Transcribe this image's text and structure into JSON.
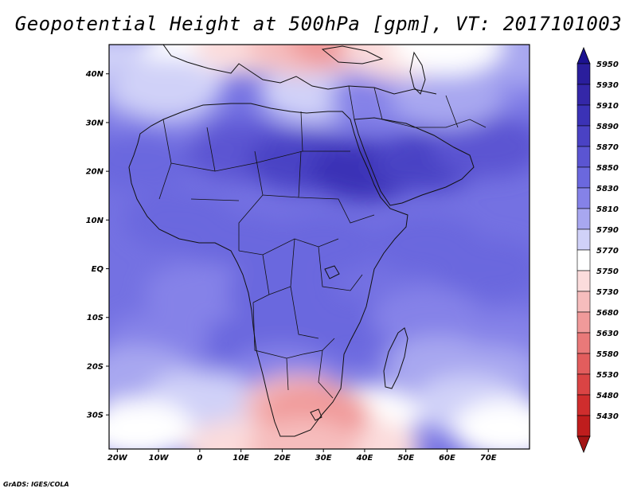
{
  "title": "Geopotential Height at 500hPa [gpm], VT: 2017101003",
  "credit": "GrADS: IGES/COLA",
  "map": {
    "lon_min": -22,
    "lon_max": 80,
    "lat_min": -37,
    "lat_max": 46,
    "lat_ticks": [
      {
        "value": 40,
        "label": "40N"
      },
      {
        "value": 30,
        "label": "30N"
      },
      {
        "value": 20,
        "label": "20N"
      },
      {
        "value": 10,
        "label": "10N"
      },
      {
        "value": 0,
        "label": "EQ"
      },
      {
        "value": -10,
        "label": "10S"
      },
      {
        "value": -20,
        "label": "20S"
      },
      {
        "value": -30,
        "label": "30S"
      }
    ],
    "lon_ticks": [
      {
        "value": -20,
        "label": "20W"
      },
      {
        "value": -10,
        "label": "10W"
      },
      {
        "value": 0,
        "label": "0"
      },
      {
        "value": 10,
        "label": "10E"
      },
      {
        "value": 20,
        "label": "20E"
      },
      {
        "value": 30,
        "label": "30E"
      },
      {
        "value": 40,
        "label": "40E"
      },
      {
        "value": 50,
        "label": "50E"
      },
      {
        "value": 60,
        "label": "60E"
      },
      {
        "value": 70,
        "label": "70E"
      }
    ]
  },
  "colorbar": {
    "levels": [
      {
        "label": "5950",
        "color": "#2a1e9c"
      },
      {
        "label": "5930",
        "color": "#3427a8"
      },
      {
        "label": "5910",
        "color": "#3b32b6"
      },
      {
        "label": "5890",
        "color": "#4a42c4"
      },
      {
        "label": "5870",
        "color": "#5b55d2"
      },
      {
        "label": "5850",
        "color": "#6b68de"
      },
      {
        "label": "5830",
        "color": "#8582e8"
      },
      {
        "label": "5810",
        "color": "#a8a7f0"
      },
      {
        "label": "5790",
        "color": "#d0d1f8"
      },
      {
        "label": "5770",
        "color": "#ffffff"
      },
      {
        "label": "5750",
        "color": "#fbdcdc"
      },
      {
        "label": "5730",
        "color": "#f6bdbd"
      },
      {
        "label": "5680",
        "color": "#f09a9a"
      },
      {
        "label": "5630",
        "color": "#e97979"
      },
      {
        "label": "5580",
        "color": "#e25d5d"
      },
      {
        "label": "5530",
        "color": "#da4444"
      },
      {
        "label": "5480",
        "color": "#cf2d2d"
      },
      {
        "label": "5430",
        "color": "#bf1d1d"
      }
    ],
    "top_cap_color": "#1c1290",
    "bottom_cap_color": "#a31414"
  },
  "fields": [
    {
      "lon": -20,
      "lat": 42,
      "label": "5790",
      "color": "#d0d1f8"
    },
    {
      "lon": -12,
      "lat": 36,
      "label": "5810",
      "color": "#a8a7f0"
    },
    {
      "lon": -10,
      "lat": 28,
      "label": "5830",
      "color": "#8582e8"
    },
    {
      "lon": -15,
      "lat": 22,
      "label": "5850",
      "color": "#6b68de"
    },
    {
      "lon": -5,
      "lat": 10,
      "label": "5850",
      "color": "#6b68de"
    },
    {
      "lon": 10,
      "lat": 24,
      "label": "5870",
      "color": "#5b55d2"
    },
    {
      "lon": 25,
      "lat": 22,
      "label": "5890",
      "color": "#4a42c4"
    },
    {
      "lon": 40,
      "lat": 20,
      "label": "5910",
      "color": "#3b32b6"
    },
    {
      "lon": 55,
      "lat": 22,
      "label": "5890",
      "color": "#4a42c4"
    },
    {
      "lon": 70,
      "lat": 25,
      "label": "5870",
      "color": "#5b55d2"
    },
    {
      "lon": 72,
      "lat": 38,
      "label": "5830",
      "color": "#8582e8"
    },
    {
      "lon": 78,
      "lat": 44,
      "label": "5810",
      "color": "#a8a7f0"
    },
    {
      "lon": 28,
      "lat": 36,
      "label": "5790",
      "color": "#d0d1f8"
    },
    {
      "lon": 45,
      "lat": 35,
      "label": "5830",
      "color": "#8582e8"
    },
    {
      "lon": 60,
      "lat": 35,
      "label": "5810",
      "color": "#a8a7f0"
    },
    {
      "lon": 10,
      "lat": 5,
      "label": "5850",
      "color": "#6b68de"
    },
    {
      "lon": 30,
      "lat": 5,
      "label": "5850",
      "color": "#6b68de"
    },
    {
      "lon": 55,
      "lat": 5,
      "label": "5850",
      "color": "#6b68de"
    },
    {
      "lon": 70,
      "lat": 0,
      "label": "5850",
      "color": "#6b68de"
    },
    {
      "lon": 0,
      "lat": -5,
      "label": "5830",
      "color": "#8582e8"
    },
    {
      "lon": 20,
      "lat": -5,
      "label": "5850",
      "color": "#6b68de"
    },
    {
      "lon": -10,
      "lat": -15,
      "label": "5830",
      "color": "#8582e8"
    },
    {
      "lon": 15,
      "lat": -15,
      "label": "5850",
      "color": "#6b68de"
    },
    {
      "lon": 35,
      "lat": -12,
      "label": "5850",
      "color": "#6b68de"
    },
    {
      "lon": 55,
      "lat": -10,
      "label": "5830",
      "color": "#8582e8"
    },
    {
      "lon": 75,
      "lat": -15,
      "label": "5830",
      "color": "#8582e8"
    },
    {
      "lon": 58,
      "lat": -20,
      "label": "5810",
      "color": "#a8a7f0"
    },
    {
      "lon": -15,
      "lat": -22,
      "label": "5810",
      "color": "#a8a7f0"
    },
    {
      "lon": 20,
      "lat": -22,
      "label": "5830",
      "color": "#8582e8"
    },
    {
      "lon": 70,
      "lat": -22,
      "label": "5810",
      "color": "#a8a7f0"
    },
    {
      "lon": 0,
      "lat": -27,
      "label": "5790",
      "color": "#d0d1f8"
    },
    {
      "lon": 65,
      "lat": -28,
      "label": "5790",
      "color": "#d0d1f8"
    },
    {
      "lon": -15,
      "lat": -33,
      "label": "5770",
      "color": "#ffffff"
    },
    {
      "lon": 40,
      "lat": -30,
      "label": "5770",
      "color": "#ffffff"
    },
    {
      "lon": 75,
      "lat": -33,
      "label": "5770",
      "color": "#ffffff"
    },
    {
      "lon": 10,
      "lat": -37,
      "label": "5750",
      "color": "#fbdcdc"
    },
    {
      "lon": 40,
      "lat": -37,
      "label": "5750",
      "color": "#fbdcdc"
    },
    {
      "lon": 24,
      "lat": -28,
      "label": "5730",
      "color": "#f6bdbd"
    },
    {
      "lon": 28,
      "lat": -30,
      "label": "5680",
      "color": "#f09a9a"
    },
    {
      "lon": 25,
      "lat": -37,
      "label": "5730",
      "color": "#f6bdbd"
    },
    {
      "lon": 0,
      "lat": 45,
      "label": "5770",
      "color": "#ffffff"
    },
    {
      "lon": 12,
      "lat": 46,
      "label": "5750",
      "color": "#fbdcdc"
    },
    {
      "lon": 25,
      "lat": 46,
      "label": "5730",
      "color": "#f6bdbd"
    },
    {
      "lon": 35,
      "lat": 47,
      "label": "5680",
      "color": "#f09a9a"
    },
    {
      "lon": 48,
      "lat": 45,
      "label": "5750",
      "color": "#fbdcdc"
    },
    {
      "lon": 60,
      "lat": 46,
      "label": "5770",
      "color": "#ffffff"
    },
    {
      "lon": -8,
      "lat": 37,
      "label": "5790",
      "color": "#d0d1f8"
    }
  ]
}
